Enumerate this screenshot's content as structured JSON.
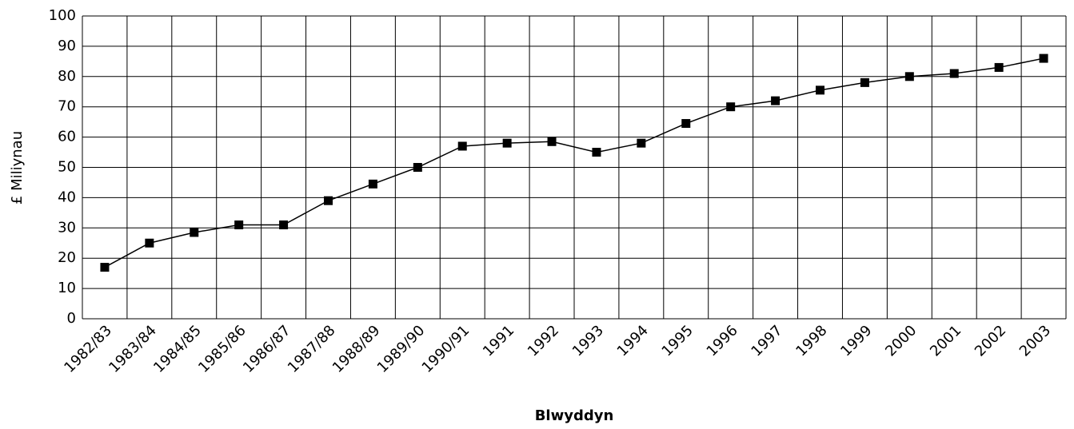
{
  "chart_data": {
    "type": "line",
    "x_label": "Blwyddyn",
    "y_label": "£ Miliynau",
    "categories": [
      "1982/83",
      "1983/84",
      "1984/85",
      "1985/86",
      "1986/87",
      "1987/88",
      "1988/89",
      "1989/90",
      "1990/91",
      "1991",
      "1992",
      "1993",
      "1994",
      "1995",
      "1996",
      "1997",
      "1998",
      "1999",
      "2000",
      "2001",
      "2002",
      "2003"
    ],
    "series": [
      {
        "name": "£ Miliynau",
        "color": "#000000",
        "values": [
          17,
          25,
          28.5,
          31,
          31,
          39,
          44.5,
          50,
          57,
          58,
          58.5,
          55,
          58,
          64.5,
          70,
          72,
          75.5,
          78,
          80,
          81,
          83,
          86
        ]
      }
    ],
    "ylim": [
      0,
      100
    ],
    "yticks": [
      0,
      10,
      20,
      30,
      40,
      50,
      60,
      70,
      80,
      90,
      100
    ],
    "grid": true,
    "marker": "square"
  }
}
